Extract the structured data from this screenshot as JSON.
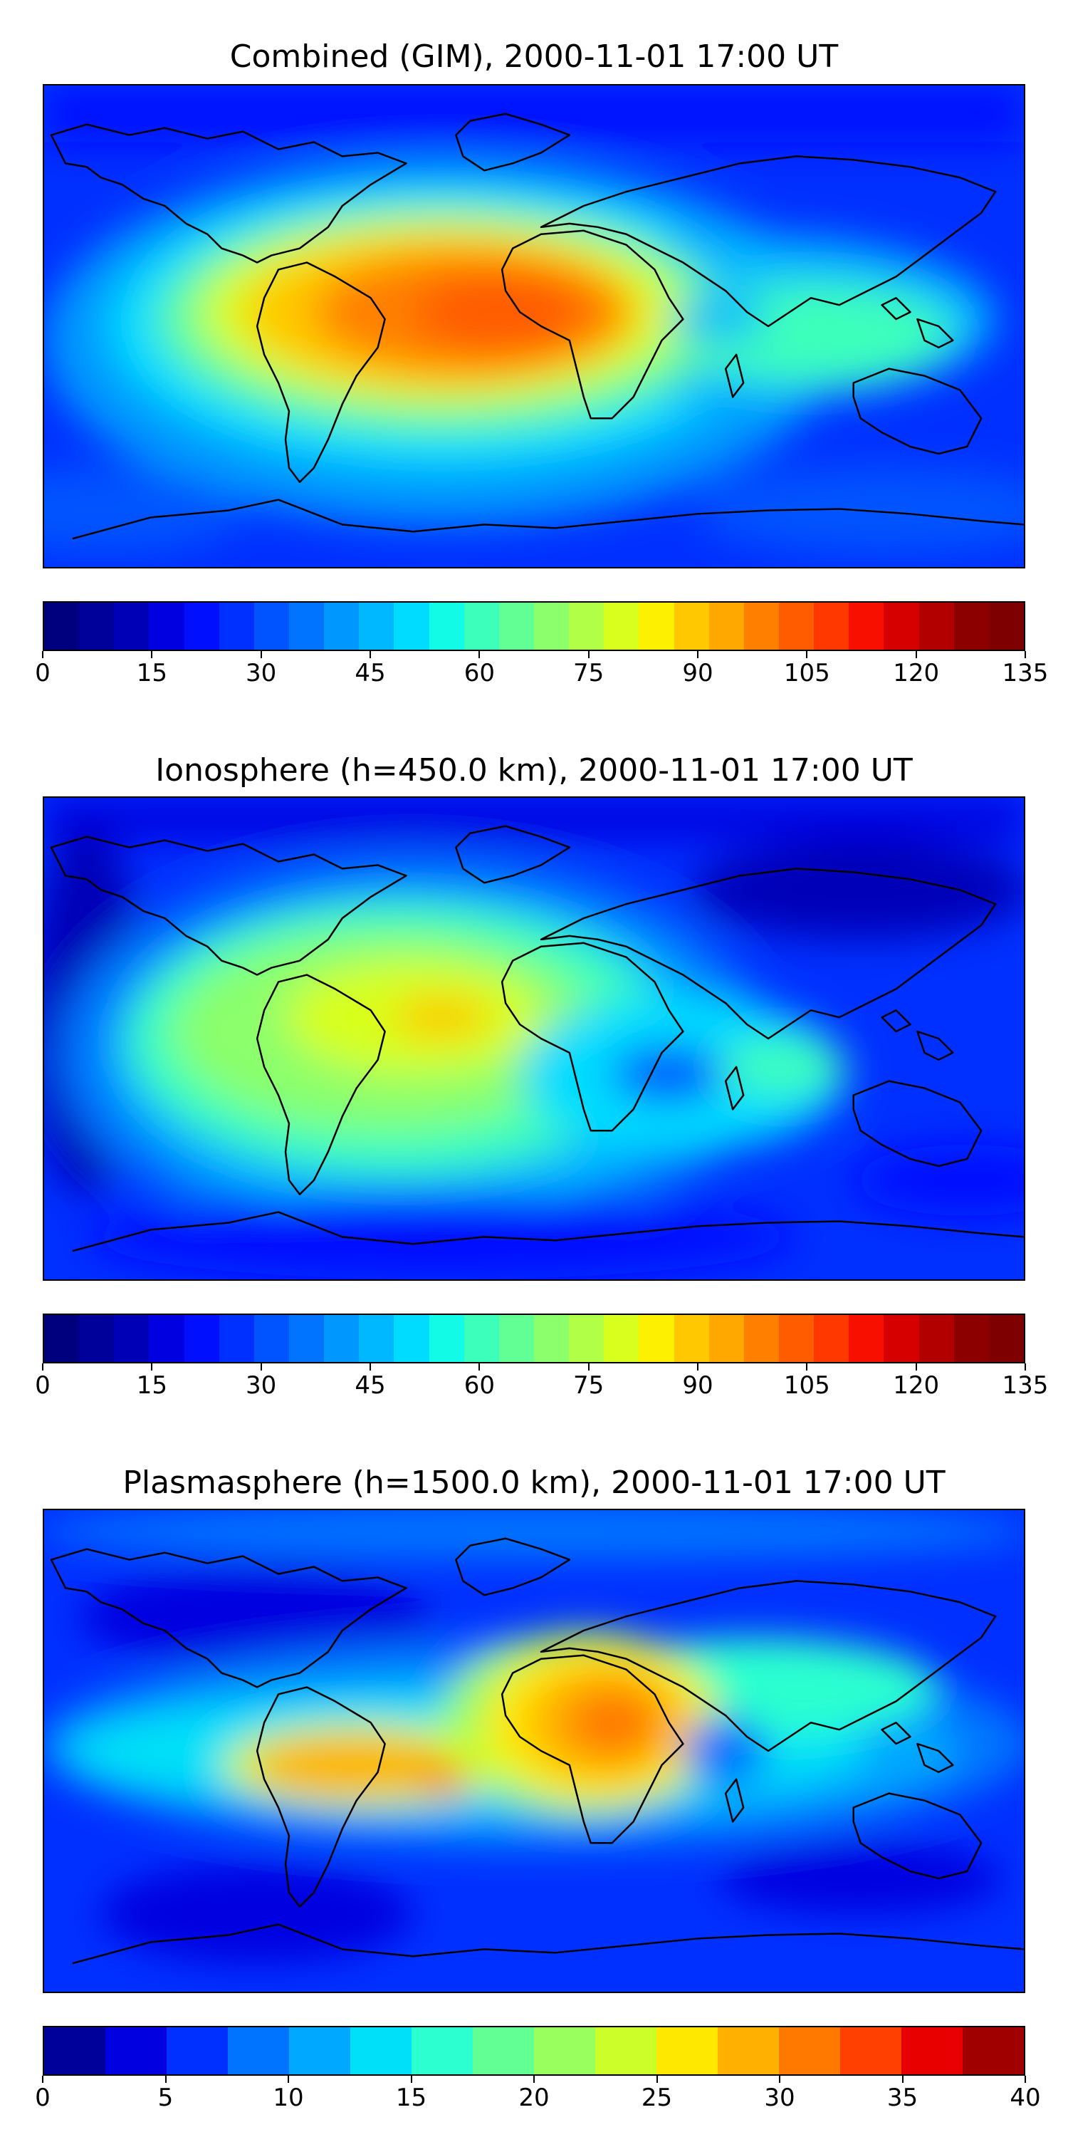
{
  "panels": [
    {
      "title": "Combined (GIM), 2000-11-01 17:00 UT",
      "colorbar": {
        "ticks": [
          "0",
          "15",
          "30",
          "45",
          "60",
          "75",
          "90",
          "105",
          "120",
          "135"
        ],
        "colors": [
          "#00007f",
          "#00009a",
          "#0000b7",
          "#0000e0",
          "#0010ff",
          "#0030ff",
          "#0054ff",
          "#0074ff",
          "#0098ff",
          "#00b8ff",
          "#00dcff",
          "#12fbe6",
          "#3cffbb",
          "#62ff94",
          "#8bff6c",
          "#b1ff46",
          "#d8ff1e",
          "#fdf000",
          "#ffc800",
          "#ffa800",
          "#ff8000",
          "#ff5c00",
          "#ff3800",
          "#f80f00",
          "#d70000",
          "#b20000",
          "#8c0000",
          "#7f0000"
        ]
      },
      "field": "combined"
    },
    {
      "title": "Ionosphere  (h=450.0 km), 2000-11-01 17:00 UT",
      "colorbar": {
        "ticks": [
          "0",
          "15",
          "30",
          "45",
          "60",
          "75",
          "90",
          "105",
          "120",
          "135"
        ],
        "colors": [
          "#00007f",
          "#00009a",
          "#0000b7",
          "#0000e0",
          "#0010ff",
          "#0030ff",
          "#0054ff",
          "#0074ff",
          "#0098ff",
          "#00b8ff",
          "#00dcff",
          "#12fbe6",
          "#3cffbb",
          "#62ff94",
          "#8bff6c",
          "#b1ff46",
          "#d8ff1e",
          "#fdf000",
          "#ffc800",
          "#ffa800",
          "#ff8000",
          "#ff5c00",
          "#ff3800",
          "#f80f00",
          "#d70000",
          "#b20000",
          "#8c0000",
          "#7f0000"
        ]
      },
      "field": "ionosphere"
    },
    {
      "title": "Plasmasphere (h=1500.0 km), 2000-11-01 17:00 UT",
      "colorbar": {
        "ticks": [
          "0",
          "5",
          "10",
          "15",
          "20",
          "25",
          "30",
          "35",
          "40"
        ],
        "colors": [
          "#00009a",
          "#0000e0",
          "#0030ff",
          "#0074ff",
          "#00a8ff",
          "#00e0f8",
          "#2cffd0",
          "#62ff94",
          "#98ff5e",
          "#ccff2a",
          "#ffe800",
          "#ffb000",
          "#ff7800",
          "#ff4000",
          "#e80000",
          "#a00000"
        ]
      },
      "field": "plasmasphere"
    }
  ]
}
